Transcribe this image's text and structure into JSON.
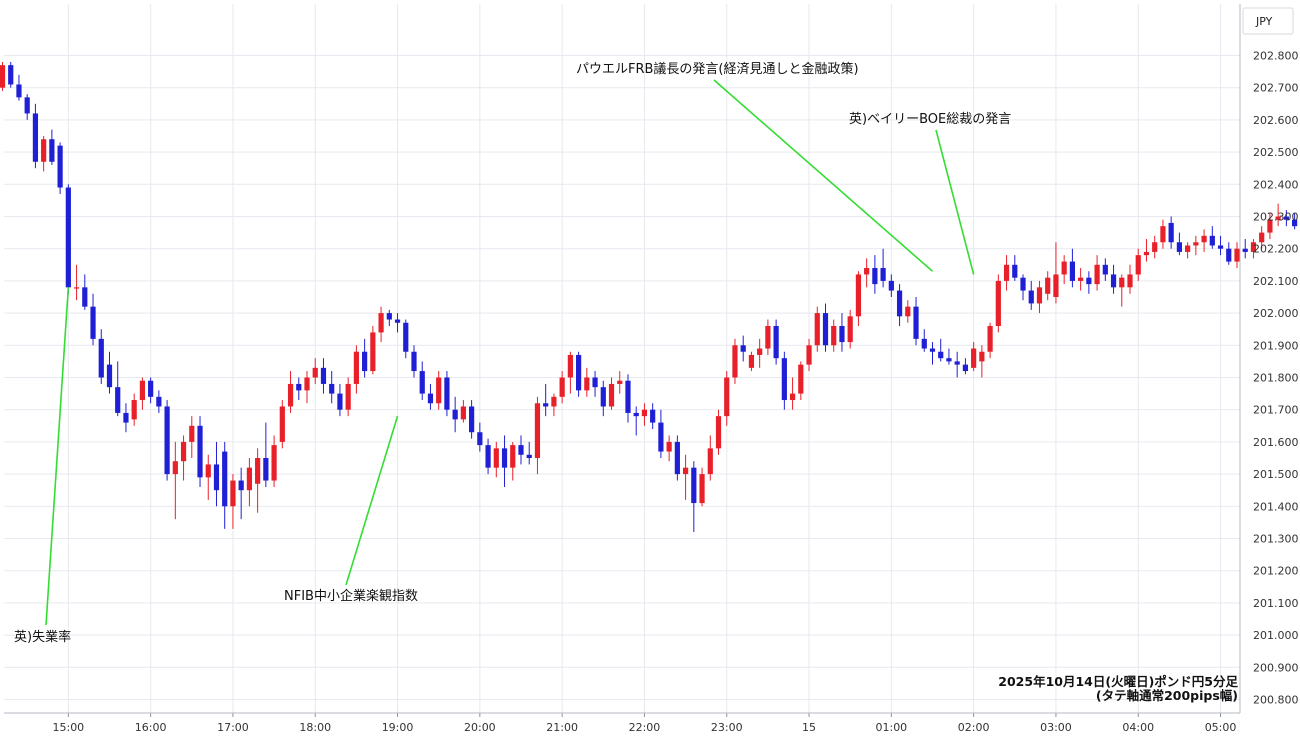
{
  "chart_data": {
    "type": "candlestick",
    "currency_label": "JPY",
    "note_lines": [
      "2025年10月14日(火曜日)ポンド円5分足",
      "(タテ軸通常200pips幅)"
    ],
    "ylim": [
      200.75,
      202.85
    ],
    "y_ticks": [
      "202.800",
      "202.700",
      "202.600",
      "202.500",
      "202.400",
      "202.300",
      "202.200",
      "202.100",
      "202.000",
      "201.900",
      "201.800",
      "201.700",
      "201.600",
      "201.500",
      "201.400",
      "201.300",
      "201.200",
      "201.100",
      "201.000",
      "200.900",
      "200.800"
    ],
    "x_ticks": [
      {
        "label": "15:00",
        "bar": 8
      },
      {
        "label": "16:00",
        "bar": 18
      },
      {
        "label": "17:00",
        "bar": 28
      },
      {
        "label": "18:00",
        "bar": 38
      },
      {
        "label": "19:00",
        "bar": 48
      },
      {
        "label": "20:00",
        "bar": 58
      },
      {
        "label": "21:00",
        "bar": 68
      },
      {
        "label": "22:00",
        "bar": 78
      },
      {
        "label": "23:00",
        "bar": 88
      },
      {
        "label": "15",
        "bar": 98
      },
      {
        "label": "01:00",
        "bar": 108
      },
      {
        "label": "02:00",
        "bar": 118
      },
      {
        "label": "03:00",
        "bar": 128
      },
      {
        "label": "04:00",
        "bar": 138
      },
      {
        "label": "05:00",
        "bar": 148
      }
    ],
    "colors": {
      "up": "#e8202a",
      "down": "#1f1fd6",
      "annotation_line": "#33dd33",
      "grid": "#e6e9ef"
    },
    "candles": [
      [
        202.7,
        202.78,
        202.69,
        202.77
      ],
      [
        202.77,
        202.78,
        202.7,
        202.71
      ],
      [
        202.71,
        202.74,
        202.66,
        202.67
      ],
      [
        202.67,
        202.68,
        202.6,
        202.62
      ],
      [
        202.62,
        202.65,
        202.45,
        202.47
      ],
      [
        202.47,
        202.55,
        202.44,
        202.54
      ],
      [
        202.54,
        202.57,
        202.46,
        202.47
      ],
      [
        202.52,
        202.53,
        202.37,
        202.39
      ],
      [
        202.39,
        202.4,
        202.06,
        202.08
      ],
      [
        202.08,
        202.15,
        202.04,
        202.08
      ],
      [
        202.08,
        202.12,
        202.01,
        202.02
      ],
      [
        202.02,
        202.06,
        201.9,
        201.92
      ],
      [
        201.92,
        201.95,
        201.78,
        201.8
      ],
      [
        201.84,
        201.88,
        201.75,
        201.77
      ],
      [
        201.77,
        201.85,
        201.68,
        201.69
      ],
      [
        201.69,
        201.72,
        201.63,
        201.66
      ],
      [
        201.67,
        201.75,
        201.65,
        201.73
      ],
      [
        201.73,
        201.8,
        201.7,
        201.79
      ],
      [
        201.79,
        201.8,
        201.72,
        201.74
      ],
      [
        201.74,
        201.76,
        201.69,
        201.71
      ],
      [
        201.71,
        201.73,
        201.48,
        201.5
      ],
      [
        201.5,
        201.6,
        201.36,
        201.54
      ],
      [
        201.54,
        201.62,
        201.48,
        201.6
      ],
      [
        201.6,
        201.68,
        201.55,
        201.65
      ],
      [
        201.65,
        201.68,
        201.46,
        201.49
      ],
      [
        201.49,
        201.56,
        201.42,
        201.53
      ],
      [
        201.53,
        201.6,
        201.4,
        201.45
      ],
      [
        201.57,
        201.6,
        201.33,
        201.4
      ],
      [
        201.4,
        201.5,
        201.33,
        201.48
      ],
      [
        201.48,
        201.52,
        201.36,
        201.45
      ],
      [
        201.45,
        201.55,
        201.4,
        201.52
      ],
      [
        201.47,
        201.58,
        201.38,
        201.55
      ],
      [
        201.55,
        201.66,
        201.46,
        201.48
      ],
      [
        201.48,
        201.62,
        201.46,
        201.59
      ],
      [
        201.6,
        201.73,
        201.58,
        201.71
      ],
      [
        201.71,
        201.82,
        201.69,
        201.78
      ],
      [
        201.78,
        201.8,
        201.73,
        201.76
      ],
      [
        201.76,
        201.82,
        201.72,
        201.8
      ],
      [
        201.8,
        201.86,
        201.78,
        201.83
      ],
      [
        201.83,
        201.86,
        201.75,
        201.78
      ],
      [
        201.78,
        201.82,
        201.72,
        201.75
      ],
      [
        201.75,
        201.78,
        201.68,
        201.7
      ],
      [
        201.7,
        201.8,
        201.68,
        201.78
      ],
      [
        201.78,
        201.9,
        201.75,
        201.88
      ],
      [
        201.88,
        201.92,
        201.8,
        201.82
      ],
      [
        201.82,
        201.96,
        201.81,
        201.94
      ],
      [
        201.94,
        202.02,
        201.91,
        202.0
      ],
      [
        202.0,
        202.01,
        201.96,
        201.98
      ],
      [
        201.98,
        202.0,
        201.94,
        201.97
      ],
      [
        201.97,
        201.98,
        201.86,
        201.88
      ],
      [
        201.88,
        201.9,
        201.8,
        201.82
      ],
      [
        201.82,
        201.85,
        201.73,
        201.75
      ],
      [
        201.75,
        201.78,
        201.7,
        201.72
      ],
      [
        201.72,
        201.82,
        201.7,
        201.8
      ],
      [
        201.8,
        201.82,
        201.68,
        201.7
      ],
      [
        201.7,
        201.74,
        201.63,
        201.67
      ],
      [
        201.67,
        201.73,
        201.66,
        201.71
      ],
      [
        201.71,
        201.73,
        201.61,
        201.63
      ],
      [
        201.63,
        201.66,
        201.57,
        201.59
      ],
      [
        201.59,
        201.61,
        201.5,
        201.52
      ],
      [
        201.52,
        201.6,
        201.49,
        201.58
      ],
      [
        201.58,
        201.62,
        201.46,
        201.52
      ],
      [
        201.52,
        201.6,
        201.48,
        201.59
      ],
      [
        201.59,
        201.62,
        201.53,
        201.56
      ],
      [
        201.56,
        201.6,
        201.53,
        201.55
      ],
      [
        201.55,
        201.74,
        201.5,
        201.72
      ],
      [
        201.72,
        201.78,
        201.68,
        201.71
      ],
      [
        201.71,
        201.75,
        201.68,
        201.74
      ],
      [
        201.74,
        201.82,
        201.72,
        201.8
      ],
      [
        201.8,
        201.88,
        201.75,
        201.87
      ],
      [
        201.87,
        201.88,
        201.74,
        201.76
      ],
      [
        201.76,
        201.83,
        201.74,
        201.8
      ],
      [
        201.8,
        201.82,
        201.74,
        201.77
      ],
      [
        201.77,
        201.79,
        201.68,
        201.71
      ],
      [
        201.71,
        201.8,
        201.7,
        201.78
      ],
      [
        201.78,
        201.82,
        201.75,
        201.79
      ],
      [
        201.79,
        201.81,
        201.66,
        201.69
      ],
      [
        201.69,
        201.71,
        201.62,
        201.68
      ],
      [
        201.68,
        201.72,
        201.65,
        201.7
      ],
      [
        201.7,
        201.72,
        201.64,
        201.66
      ],
      [
        201.66,
        201.7,
        201.55,
        201.57
      ],
      [
        201.57,
        201.62,
        201.54,
        201.6
      ],
      [
        201.6,
        201.62,
        201.48,
        201.5
      ],
      [
        201.5,
        201.56,
        201.42,
        201.52
      ],
      [
        201.52,
        201.54,
        201.32,
        201.41
      ],
      [
        201.41,
        201.52,
        201.4,
        201.5
      ],
      [
        201.5,
        201.62,
        201.48,
        201.58
      ],
      [
        201.58,
        201.7,
        201.56,
        201.68
      ],
      [
        201.68,
        201.82,
        201.65,
        201.8
      ],
      [
        201.8,
        201.92,
        201.78,
        201.9
      ],
      [
        201.9,
        201.93,
        201.85,
        201.88
      ],
      [
        201.83,
        201.88,
        201.82,
        201.87
      ],
      [
        201.87,
        201.92,
        201.83,
        201.89
      ],
      [
        201.89,
        201.98,
        201.87,
        201.96
      ],
      [
        201.96,
        201.98,
        201.84,
        201.86
      ],
      [
        201.86,
        201.88,
        201.7,
        201.73
      ],
      [
        201.73,
        201.8,
        201.7,
        201.75
      ],
      [
        201.75,
        201.85,
        201.73,
        201.84
      ],
      [
        201.84,
        201.92,
        201.82,
        201.9
      ],
      [
        201.9,
        202.02,
        201.88,
        202.0
      ],
      [
        202.0,
        202.03,
        201.88,
        201.9
      ],
      [
        201.9,
        201.98,
        201.88,
        201.96
      ],
      [
        201.96,
        202.0,
        201.88,
        201.91
      ],
      [
        201.91,
        202.01,
        201.89,
        201.99
      ],
      [
        201.99,
        202.13,
        201.96,
        202.12
      ],
      [
        202.12,
        202.17,
        202.08,
        202.14
      ],
      [
        202.14,
        202.18,
        202.06,
        202.09
      ],
      [
        202.14,
        202.2,
        202.08,
        202.1
      ],
      [
        202.1,
        202.12,
        202.05,
        202.07
      ],
      [
        202.07,
        202.09,
        201.96,
        201.99
      ],
      [
        201.99,
        202.04,
        201.97,
        202.02
      ],
      [
        202.02,
        202.05,
        201.9,
        201.92
      ],
      [
        201.92,
        201.95,
        201.88,
        201.89
      ],
      [
        201.89,
        201.91,
        201.84,
        201.88
      ],
      [
        201.88,
        201.92,
        201.85,
        201.86
      ],
      [
        201.86,
        201.89,
        201.84,
        201.85
      ],
      [
        201.85,
        201.88,
        201.8,
        201.84
      ],
      [
        201.84,
        201.86,
        201.81,
        201.82
      ],
      [
        201.83,
        201.91,
        201.82,
        201.89
      ],
      [
        201.85,
        201.9,
        201.8,
        201.88
      ],
      [
        201.88,
        201.97,
        201.86,
        201.96
      ],
      [
        201.96,
        202.12,
        201.94,
        202.1
      ],
      [
        202.1,
        202.18,
        202.07,
        202.15
      ],
      [
        202.15,
        202.18,
        202.1,
        202.11
      ],
      [
        202.11,
        202.12,
        202.04,
        202.07
      ],
      [
        202.07,
        202.1,
        202.01,
        202.03
      ],
      [
        202.03,
        202.1,
        202.0,
        202.08
      ],
      [
        202.06,
        202.13,
        202.04,
        202.11
      ],
      [
        202.05,
        202.22,
        202.03,
        202.12
      ],
      [
        202.12,
        202.18,
        202.09,
        202.16
      ],
      [
        202.16,
        202.2,
        202.08,
        202.1
      ],
      [
        202.1,
        202.14,
        202.07,
        202.11
      ],
      [
        202.11,
        202.13,
        202.06,
        202.09
      ],
      [
        202.09,
        202.18,
        202.07,
        202.15
      ],
      [
        202.15,
        202.17,
        202.1,
        202.12
      ],
      [
        202.12,
        202.15,
        202.06,
        202.08
      ],
      [
        202.08,
        202.12,
        202.02,
        202.11
      ],
      [
        202.08,
        202.15,
        202.06,
        202.12
      ],
      [
        202.12,
        202.2,
        202.1,
        202.18
      ],
      [
        202.18,
        202.23,
        202.16,
        202.19
      ],
      [
        202.19,
        202.24,
        202.17,
        202.22
      ],
      [
        202.22,
        202.29,
        202.2,
        202.27
      ],
      [
        202.28,
        202.3,
        202.2,
        202.22
      ],
      [
        202.22,
        202.25,
        202.18,
        202.19
      ],
      [
        202.19,
        202.22,
        202.17,
        202.21
      ],
      [
        202.21,
        202.24,
        202.18,
        202.22
      ],
      [
        202.22,
        202.26,
        202.19,
        202.24
      ],
      [
        202.24,
        202.27,
        202.2,
        202.21
      ],
      [
        202.21,
        202.24,
        202.18,
        202.2
      ],
      [
        202.2,
        202.22,
        202.15,
        202.16
      ],
      [
        202.16,
        202.22,
        202.14,
        202.2
      ],
      [
        202.2,
        202.23,
        202.17,
        202.19
      ],
      [
        202.19,
        202.23,
        202.17,
        202.22
      ],
      [
        202.22,
        202.27,
        202.2,
        202.25
      ],
      [
        202.25,
        202.31,
        202.23,
        202.29
      ],
      [
        202.29,
        202.34,
        202.27,
        202.3
      ],
      [
        202.3,
        202.32,
        202.27,
        202.29
      ],
      [
        202.29,
        202.31,
        202.26,
        202.27
      ],
      [
        202.27,
        202.29,
        202.23,
        202.24
      ],
      [
        202.24,
        202.26,
        202.22,
        202.25
      ],
      [
        202.25,
        202.28,
        202.23,
        202.24
      ],
      [
        202.24,
        202.27,
        202.22,
        202.25
      ],
      [
        202.25,
        202.27,
        202.21,
        202.22
      ],
      [
        202.22,
        202.24,
        202.18,
        202.2
      ],
      [
        202.2,
        202.22,
        202.14,
        202.18
      ],
      [
        202.18,
        202.2,
        202.01,
        202.06
      ],
      [
        202.06,
        202.1,
        202.0,
        202.03
      ],
      [
        202.03,
        202.1,
        202.02,
        202.08
      ],
      [
        202.08,
        202.15,
        202.06,
        202.12
      ],
      [
        202.12,
        202.18,
        202.08,
        202.13
      ]
    ],
    "annotations": [
      {
        "text": "英)失業率",
        "bar": 8,
        "price": 202.08,
        "label_x": 14,
        "label_y": 641,
        "line_end_x": 46,
        "line_end_y": 625
      },
      {
        "text": "NFIB中小企業楽観指数",
        "bar": 48,
        "price": 201.68,
        "label_x": 284,
        "label_y": 600,
        "line_end_x": 346,
        "line_end_y": 585
      },
      {
        "text": "パウエルFRB議長の発言(経済見通しと金融政策)",
        "bar": 113,
        "price": 202.13,
        "label_x": 576,
        "label_y": 73,
        "line_end_x": 714,
        "line_end_y": 80
      },
      {
        "text": "英)ベイリーBOE総裁の発言",
        "bar": 118,
        "price": 202.12,
        "label_x": 849,
        "label_y": 123,
        "line_end_x": 936,
        "line_end_y": 130
      }
    ]
  }
}
